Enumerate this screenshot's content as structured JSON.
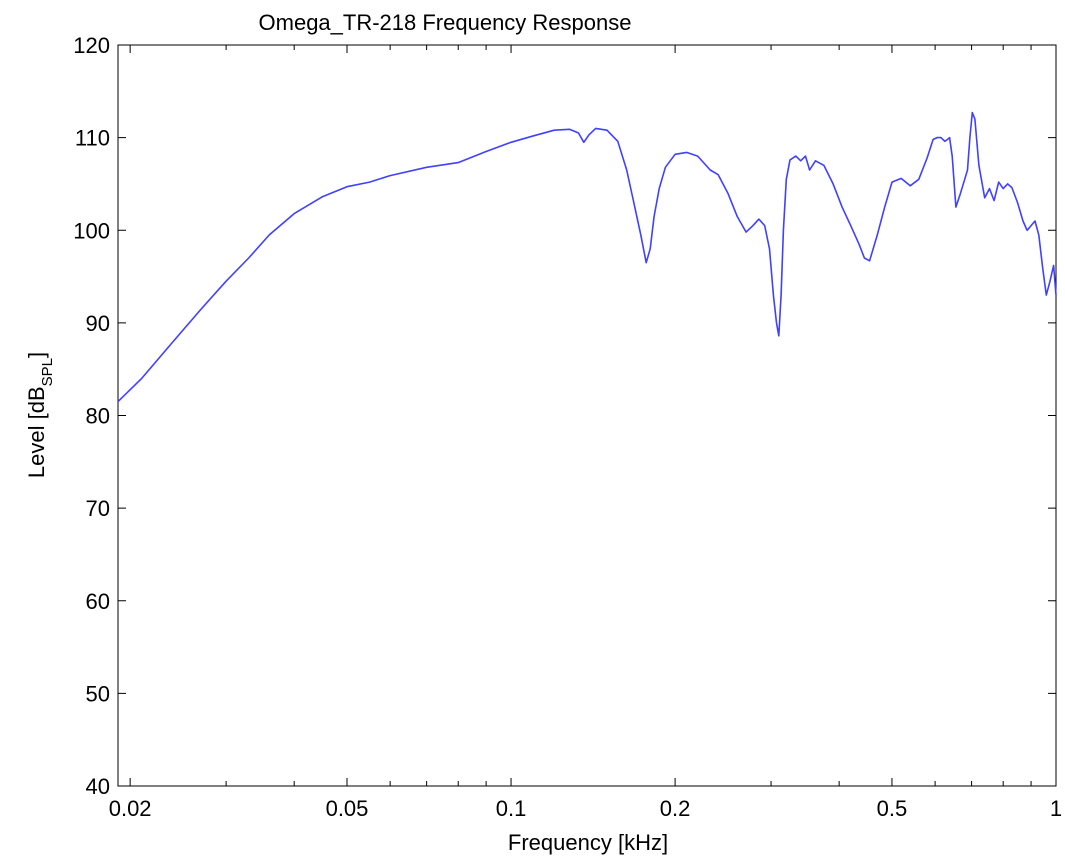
{
  "chart_data": {
    "type": "line",
    "title": "Omega_TR-218 Frequency Response",
    "xlabel": "Frequency [kHz]",
    "ylabel_main": "Level [dB",
    "ylabel_sub": "SPL",
    "ylabel_close": "]",
    "x_scale": "log",
    "xlim": [
      0.019,
      1.0
    ],
    "ylim": [
      40,
      120
    ],
    "x_ticks": [
      0.02,
      0.05,
      0.1,
      0.2,
      0.5,
      1
    ],
    "x_tick_labels": [
      "0.02",
      "0.05",
      "0.1",
      "0.2",
      "0.5",
      "1"
    ],
    "y_ticks": [
      40,
      50,
      60,
      70,
      80,
      90,
      100,
      110,
      120
    ],
    "y_tick_labels": [
      "40",
      "50",
      "60",
      "70",
      "80",
      "90",
      "100",
      "110",
      "120"
    ],
    "grid": false,
    "line_color": "#4040ff",
    "series": [
      {
        "x": [
          0.019,
          0.021,
          0.024,
          0.027,
          0.03,
          0.033,
          0.036,
          0.04,
          0.045,
          0.05,
          0.055,
          0.06,
          0.07,
          0.08,
          0.09,
          0.1,
          0.11,
          0.12,
          0.128,
          0.133,
          0.136,
          0.139,
          0.143,
          0.15,
          0.157,
          0.163,
          0.168,
          0.173,
          0.177,
          0.18,
          0.183,
          0.187,
          0.192,
          0.2,
          0.21,
          0.22,
          0.232,
          0.24,
          0.25,
          0.26,
          0.27,
          0.278,
          0.285,
          0.292,
          0.298,
          0.303,
          0.307,
          0.31,
          0.313,
          0.316,
          0.32,
          0.325,
          0.333,
          0.34,
          0.347,
          0.353,
          0.362,
          0.375,
          0.39,
          0.405,
          0.42,
          0.435,
          0.445,
          0.455,
          0.47,
          0.485,
          0.5,
          0.52,
          0.54,
          0.56,
          0.58,
          0.595,
          0.605,
          0.615,
          0.625,
          0.632,
          0.638,
          0.645,
          0.655,
          0.668,
          0.68,
          0.688,
          0.695,
          0.702,
          0.71,
          0.722,
          0.74,
          0.755,
          0.77,
          0.785,
          0.8,
          0.815,
          0.83,
          0.85,
          0.87,
          0.885,
          0.9,
          0.915,
          0.93,
          0.945,
          0.96,
          0.975,
          0.99,
          1.0
        ],
        "y": [
          81.5,
          84,
          88,
          91.5,
          94.5,
          97,
          99.5,
          101.8,
          103.6,
          104.7,
          105.2,
          105.9,
          106.8,
          107.3,
          108.5,
          109.5,
          110.2,
          110.8,
          110.9,
          110.5,
          109.5,
          110.3,
          111.0,
          110.8,
          109.6,
          106.5,
          103.0,
          99.5,
          96.5,
          98.0,
          101.5,
          104.5,
          106.8,
          108.2,
          108.4,
          108.0,
          106.5,
          106.0,
          104.0,
          101.5,
          99.8,
          100.5,
          101.2,
          100.5,
          98.0,
          93.0,
          90.0,
          88.6,
          93.0,
          100.0,
          105.5,
          107.6,
          108.0,
          107.5,
          108.0,
          106.5,
          107.5,
          107.0,
          105.0,
          102.5,
          100.5,
          98.5,
          97.0,
          96.7,
          99.5,
          102.5,
          105.2,
          105.6,
          104.8,
          105.5,
          107.8,
          109.8,
          110.0,
          110.0,
          109.6,
          109.8,
          110.0,
          108.0,
          102.5,
          104.0,
          105.5,
          106.5,
          110.0,
          112.7,
          112.0,
          107.0,
          103.5,
          104.5,
          103.2,
          105.2,
          104.5,
          105.0,
          104.6,
          103.0,
          101.0,
          100.0,
          100.5,
          101.0,
          99.5,
          96.0,
          93.0,
          94.5,
          96.2,
          93.0
        ]
      }
    ]
  }
}
